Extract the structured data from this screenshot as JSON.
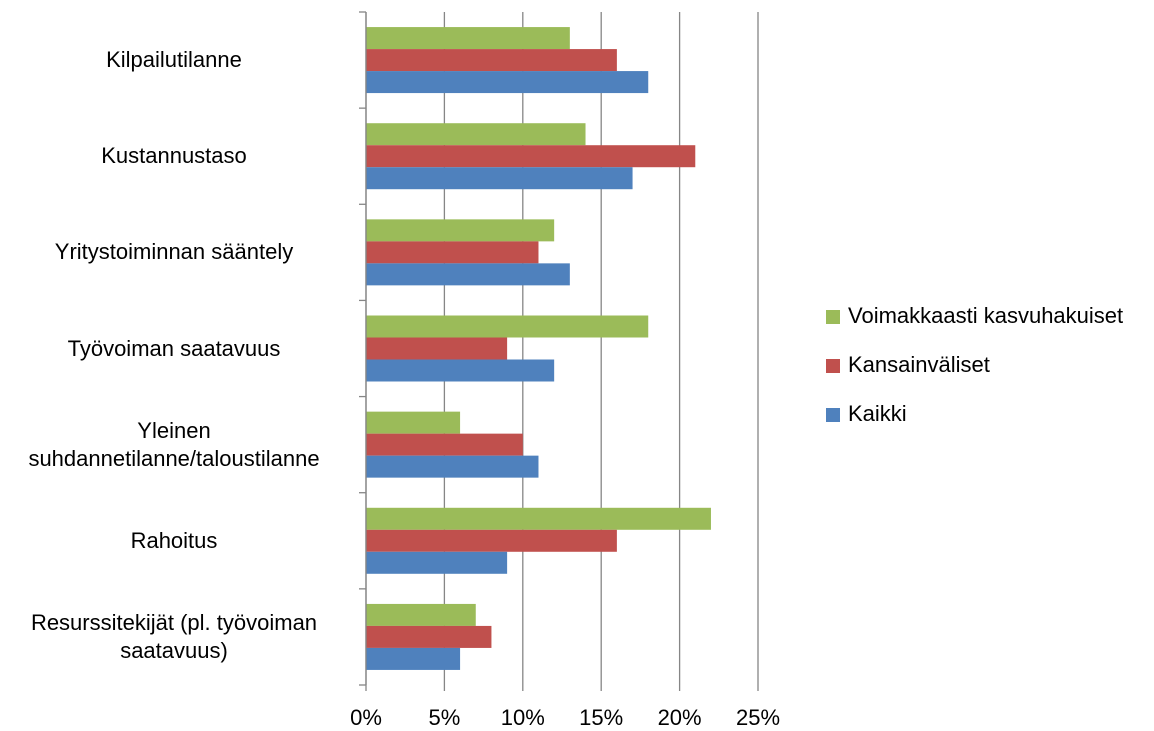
{
  "chart_data": {
    "type": "bar",
    "orientation": "horizontal",
    "categories": [
      "Kilpailutilanne",
      "Kustannustaso",
      "Yritystoiminnan sääntely",
      "Työvoiman saatavuus",
      "Yleinen\nsuhdannetilanne/taloustilanne",
      "Rahoitus",
      "Resurssitekijät (pl. työvoiman\nsaatavuus)"
    ],
    "series": [
      {
        "name": "Voimakkaasti kasvuhakuiset",
        "color": "#9bbb59",
        "values": [
          13,
          14,
          12,
          18,
          6,
          22,
          7
        ]
      },
      {
        "name": "Kansainväliset",
        "color": "#c0504d",
        "values": [
          16,
          21,
          11,
          9,
          10,
          16,
          8
        ]
      },
      {
        "name": "Kaikki",
        "color": "#4f81bd",
        "values": [
          18,
          17,
          13,
          12,
          11,
          9,
          6
        ]
      }
    ],
    "xlim": [
      0,
      25
    ],
    "xticks": [
      {
        "value": 0,
        "label": "0%"
      },
      {
        "value": 5,
        "label": "5%"
      },
      {
        "value": 10,
        "label": "10%"
      },
      {
        "value": 15,
        "label": "15%"
      },
      {
        "value": 20,
        "label": "20%"
      },
      {
        "value": 25,
        "label": "25%"
      }
    ],
    "grid": true,
    "legend": "right"
  }
}
